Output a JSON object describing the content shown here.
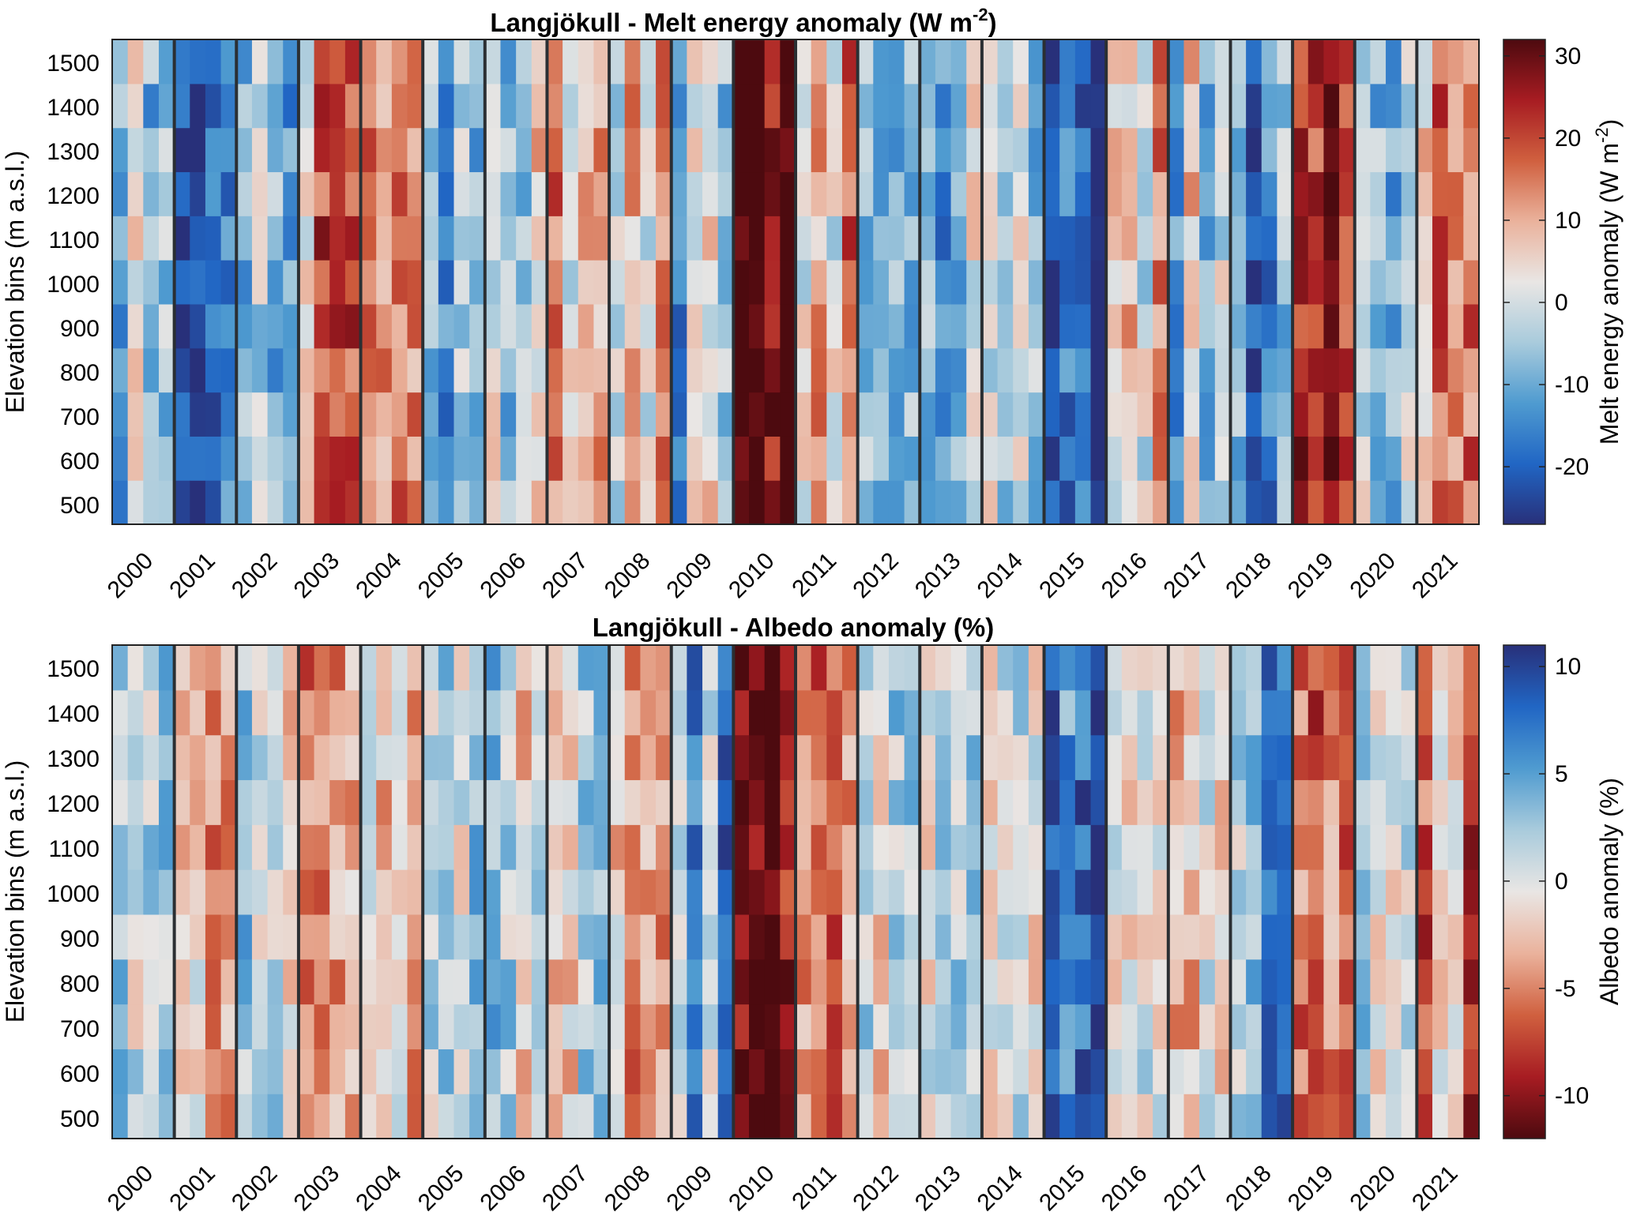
{
  "chart_data": [
    {
      "type": "heatmap",
      "title": "Langjökull - Melt energy anomaly",
      "title_unit": "W m",
      "title_sup": "-2",
      "title_close": ")",
      "ylabel": "Elevation bins (m a.s.l.)",
      "y_ticks": [
        "1500",
        "1400",
        "1300",
        "1200",
        "1100",
        "1000",
        "900",
        "800",
        "700",
        "600",
        "500"
      ],
      "x_ticks": [
        "2000",
        "2001",
        "2002",
        "2003",
        "2004",
        "2005",
        "2006",
        "2007",
        "2008",
        "2009",
        "2010",
        "2011",
        "2012",
        "2013",
        "2014",
        "2015",
        "2016",
        "2017",
        "2018",
        "2019",
        "2020",
        "2021"
      ],
      "years": [
        2000,
        2001,
        2002,
        2003,
        2004,
        2005,
        2006,
        2007,
        2008,
        2009,
        2010,
        2011,
        2012,
        2013,
        2014,
        2015,
        2016,
        2017,
        2018,
        2019,
        2020,
        2021
      ],
      "elevation_bins": [
        500,
        600,
        700,
        800,
        900,
        1000,
        1100,
        1200,
        1300,
        1400,
        1500
      ],
      "colorbar": {
        "label": "Melt energy anomaly (W m",
        "label_sup": "-2",
        "label_close": ")",
        "range": [
          -27,
          32
        ],
        "ticks": [
          "30",
          "20",
          "10",
          "0",
          "-10",
          "-20"
        ],
        "tick_values": [
          30,
          20,
          10,
          0,
          -10,
          -20
        ],
        "colormap": "diverging blue-white-red",
        "colors": [
          "#28307a",
          "#2166c4",
          "#4f9bd0",
          "#a9cbdc",
          "#e9e6e4",
          "#eab29c",
          "#d0603f",
          "#a71c22",
          "#4d0a0f"
        ]
      },
      "yearly_tendency": [
        -5,
        -22,
        -8,
        12,
        8,
        -10,
        0,
        6,
        6,
        -6,
        30,
        10,
        -6,
        -7,
        -6,
        -22,
        6,
        -2,
        -15,
        22,
        -6,
        10
      ]
    },
    {
      "type": "heatmap",
      "title": "Langjökull - Albedo anomaly (%)",
      "ylabel": "Elevation bins (m a.s.l.)",
      "y_ticks": [
        "1500",
        "1400",
        "1300",
        "1200",
        "1100",
        "1000",
        "900",
        "800",
        "700",
        "600",
        "500"
      ],
      "x_ticks": [
        "2000",
        "2001",
        "2002",
        "2003",
        "2004",
        "2005",
        "2006",
        "2007",
        "2008",
        "2009",
        "2010",
        "2011",
        "2012",
        "2013",
        "2014",
        "2015",
        "2016",
        "2017",
        "2018",
        "2019",
        "2020",
        "2021"
      ],
      "years": [
        2000,
        2001,
        2002,
        2003,
        2004,
        2005,
        2006,
        2007,
        2008,
        2009,
        2010,
        2011,
        2012,
        2013,
        2014,
        2015,
        2016,
        2017,
        2018,
        2019,
        2020,
        2021
      ],
      "elevation_bins": [
        500,
        600,
        700,
        800,
        900,
        1000,
        1100,
        1200,
        1300,
        1400,
        1500
      ],
      "colorbar": {
        "label": "Albedo anomaly (%)",
        "range": [
          -12,
          11
        ],
        "ticks": [
          "10",
          "5",
          "0",
          "-5",
          "-10"
        ],
        "tick_values": [
          10,
          5,
          0,
          -5,
          -10
        ],
        "colormap": "diverging red-white-blue",
        "colors": [
          "#4d0a0f",
          "#a71c22",
          "#d0603f",
          "#eab29c",
          "#e9e6e4",
          "#a9cbdc",
          "#4f9bd0",
          "#2166c4",
          "#28307a"
        ]
      },
      "yearly_tendency": [
        3,
        -2,
        1,
        -3,
        -2,
        3,
        1,
        -1,
        -3,
        4,
        -11,
        -3,
        1,
        1,
        -1,
        8,
        -3,
        -3,
        4,
        -8,
        1,
        -5
      ]
    }
  ]
}
